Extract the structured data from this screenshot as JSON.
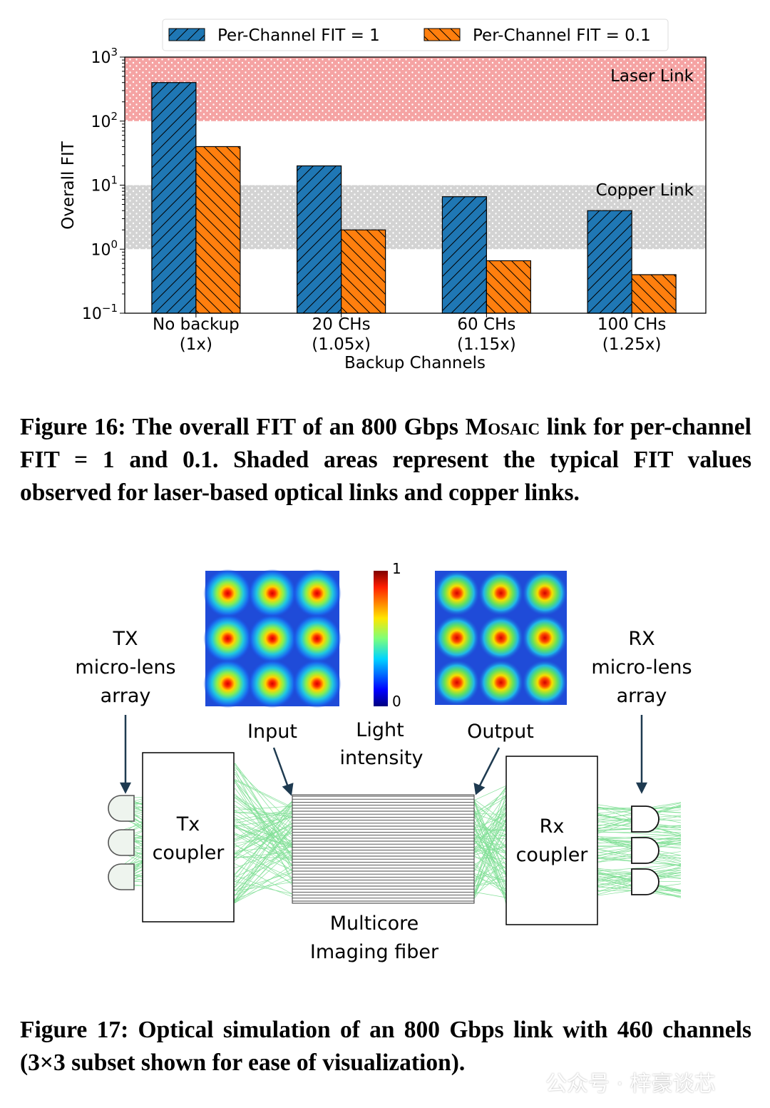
{
  "chart_data": {
    "type": "bar",
    "yscale": "log",
    "ylim": [
      0.1,
      1000
    ],
    "ylabel": "Overall FIT",
    "xlabel": "Backup Channels",
    "yticks": [
      {
        "value": 0.1,
        "base": "10",
        "exp": "−1"
      },
      {
        "value": 1,
        "base": "10",
        "exp": "0"
      },
      {
        "value": 10,
        "base": "10",
        "exp": "1"
      },
      {
        "value": 100,
        "base": "10",
        "exp": "2"
      },
      {
        "value": 1000,
        "base": "10",
        "exp": "3"
      }
    ],
    "categories": [
      [
        "No backup",
        "(1x)"
      ],
      [
        "20 CHs",
        "(1.05x)"
      ],
      [
        "60 CHs",
        "(1.15x)"
      ],
      [
        "100 CHs",
        "(1.25x)"
      ]
    ],
    "series": [
      {
        "name": "Per-Channel FIT = 1",
        "color": "#1f77b4",
        "hatch": "forward",
        "values": [
          400,
          20,
          6.6,
          4.0
        ]
      },
      {
        "name": "Per-Channel FIT = 0.1",
        "color": "#ff7f0e",
        "hatch": "backward",
        "values": [
          40,
          2.0,
          0.66,
          0.4
        ]
      }
    ],
    "bands": [
      {
        "label": "Laser Link",
        "range": [
          100,
          1000
        ],
        "color": "#f28b8b"
      },
      {
        "label": "Copper Link",
        "range": [
          1,
          10
        ],
        "color": "#c8c8c8"
      }
    ],
    "legend_position": "top-center",
    "grid": false
  },
  "caption16": {
    "lead": "Figure 16: The overall FIT of an 800 Gbps ",
    "mosaic": "Mosaic",
    "p1": " link for per-channel FIT = ",
    "v1": "1",
    "p2": " and ",
    "v2": "0.1",
    "p3": ". Shaded areas represent the typical FIT values observed for laser-based optical links and copper links."
  },
  "diagram": {
    "tx_label": [
      "TX",
      "micro-lens",
      "array"
    ],
    "rx_label": [
      "RX",
      "micro-lens",
      "array"
    ],
    "input_label": "Input",
    "output_label": "Output",
    "light_label": [
      "Light",
      "intensity"
    ],
    "colorbar_max": "1",
    "colorbar_min": "0",
    "tx_coupler": [
      "Tx",
      "coupler"
    ],
    "rx_coupler": [
      "Rx",
      "coupler"
    ],
    "fiber_label": [
      "Multicore",
      "Imaging fiber"
    ]
  },
  "caption17": {
    "text": "Figure 17: Optical simulation of an 800 Gbps link with 460 channels (3×3 subset shown for ease of visualization)."
  },
  "watermark": "公众号 · 梓豪谈芯"
}
